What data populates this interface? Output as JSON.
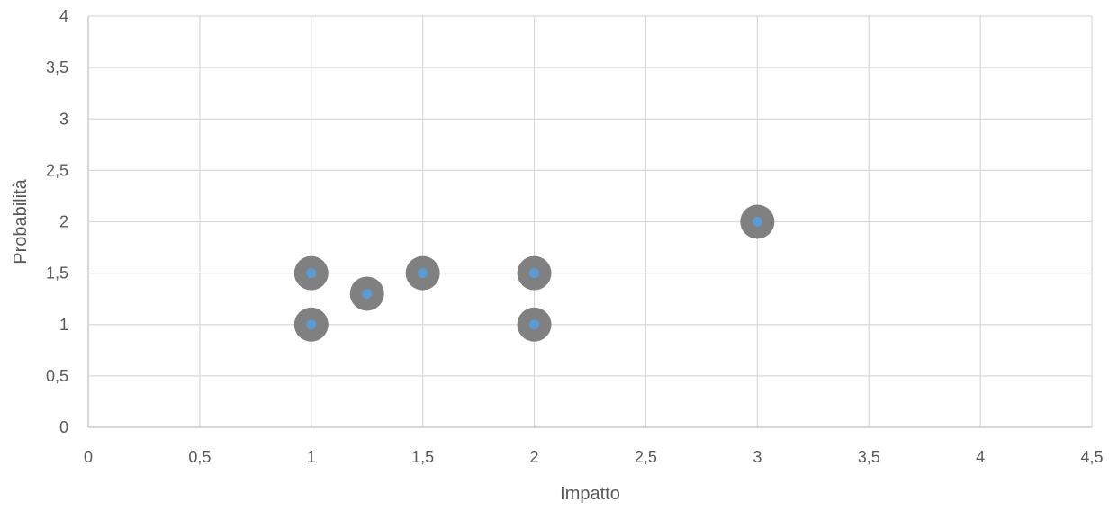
{
  "chart_data": {
    "type": "scatter",
    "title": "",
    "xlabel": "Impatto",
    "ylabel": "Probabilità",
    "xlim": [
      0,
      4.5
    ],
    "ylim": [
      0,
      4
    ],
    "x_ticks": [
      "0",
      "0,5",
      "1",
      "1,5",
      "2",
      "2,5",
      "3",
      "3,5",
      "4",
      "4,5"
    ],
    "y_ticks": [
      "0",
      "0,5",
      "1",
      "1,5",
      "2",
      "2,5",
      "3",
      "3,5",
      "4"
    ],
    "grid": true,
    "legend": "none",
    "series": [
      {
        "points": [
          {
            "x": 1,
            "y": 1.5
          },
          {
            "x": 1.25,
            "y": 1.3
          },
          {
            "x": 1.5,
            "y": 1.5
          },
          {
            "x": 2,
            "y": 1.5
          },
          {
            "x": 1,
            "y": 1
          },
          {
            "x": 2,
            "y": 1
          },
          {
            "x": 3,
            "y": 2
          }
        ],
        "marker_outer_color": "#808080",
        "marker_inner_color": "#5b9bd5"
      }
    ]
  }
}
